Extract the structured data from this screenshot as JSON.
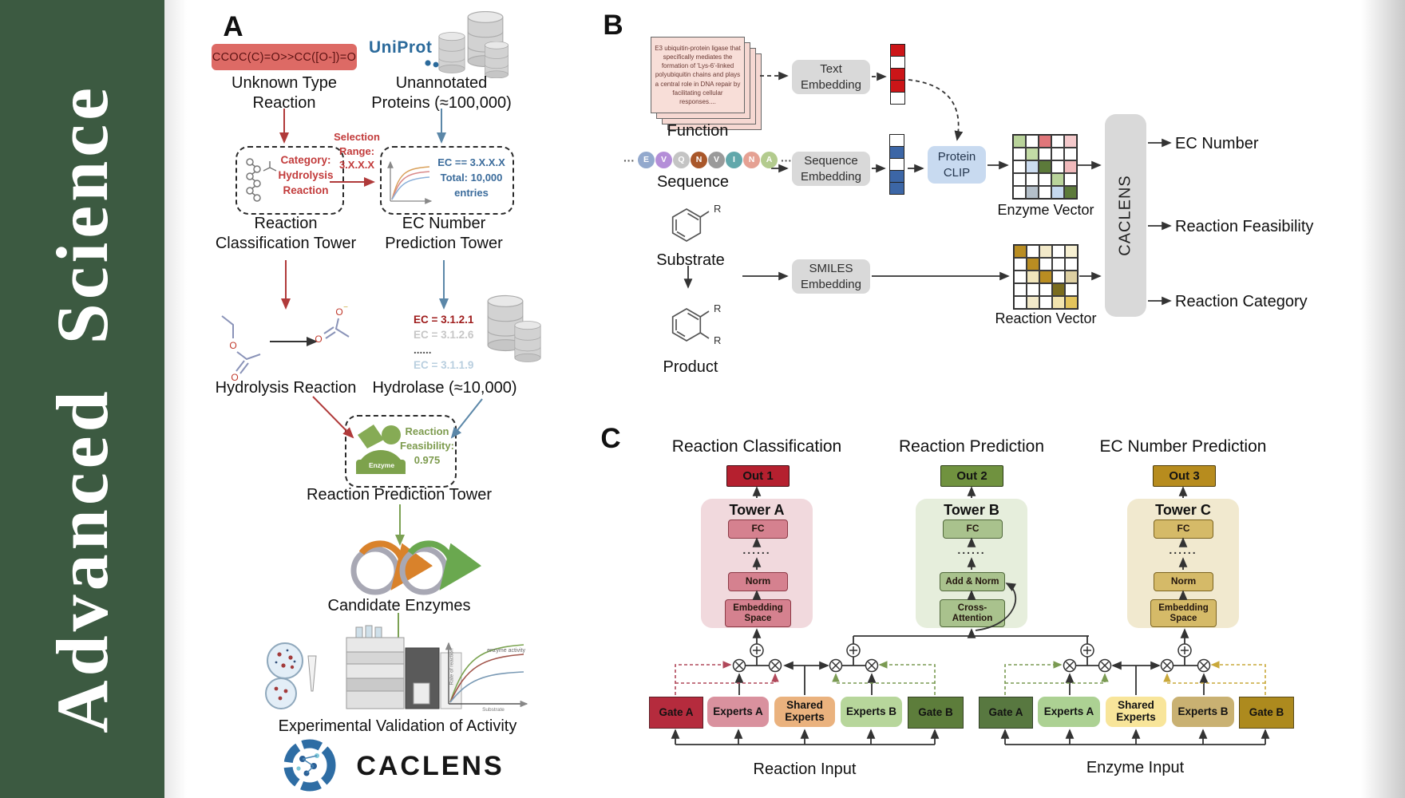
{
  "journal": {
    "title": "Advanced  Science",
    "band_color": "#3c5a41"
  },
  "colors": {
    "arrow_red": "#b03a3a",
    "arrow_blue": "#5b87a8",
    "arrow_green": "#7ba153",
    "dashed_red": "#b0485a",
    "dashed_green": "#7a9a52",
    "dashed_yellow": "#c9a83a",
    "smiles_box": "#dd6a65",
    "uniprot_blue": "#2b6a9b"
  },
  "panelA": {
    "label": "A",
    "smiles": "CCOC(C)=O>>CC([O-])=O",
    "unknown_reaction": "Unknown Type\nReaction",
    "uniprot": "UniProt",
    "unannotated": "Unannotated\nProteins (≈100,000)",
    "selection_range": "Selection\nRange:\n3.X.X.X",
    "category_box": "Category:\nHydrolysis\nReaction",
    "ec_box": "EC == 3.X.X.X\nTotal: 10,000\nentries",
    "classification_tower": "Reaction\nClassification Tower",
    "ec_tower": "EC Number\nPrediction Tower",
    "hydrolysis": "Hydrolysis Reaction",
    "hydrolase": "Hydrolase (≈10,000)",
    "ec_list": [
      {
        "text": "EC = 3.1.2.1",
        "color": "#9e1b1b"
      },
      {
        "text": "EC = 3.1.2.6",
        "color": "#c6c6c6"
      },
      {
        "text": "......",
        "color": "#555555"
      },
      {
        "text": "EC = 3.1.1.9",
        "color": "#b9cfdf"
      }
    ],
    "enzyme_icon_label": "Enzyme",
    "feasibility": "Reaction\nFeasibility:\n0.975",
    "prediction_tower": "Reaction Prediction Tower",
    "candidates": "Candidate Enzymes",
    "activity_plot": {
      "curve_label": "enzyme activity",
      "ylabel": "Rate of reaction",
      "xlabel": "Substrate"
    },
    "validation": "Experimental Validation of Activity",
    "logo_text": "CACLENS"
  },
  "panelB": {
    "label": "B",
    "function_card": "E3 ubiquitin-protein ligase that specifically mediates the formation of 'Lys-6'-linked polyubiquitin chains and plays a central role in DNA repair by facilitating cellular responses....",
    "function_label": "Function",
    "ellipsis": "···",
    "sequence_residues": [
      {
        "letter": "E",
        "color": "#93a9cd"
      },
      {
        "letter": "V",
        "color": "#b48ed8"
      },
      {
        "letter": "Q",
        "color": "#c4c4c4"
      },
      {
        "letter": "N",
        "color": "#a9572a"
      },
      {
        "letter": "V",
        "color": "#9a9a9a"
      },
      {
        "letter": "I",
        "color": "#62a8ab"
      },
      {
        "letter": "N",
        "color": "#e5a193"
      },
      {
        "letter": "A",
        "color": "#b3cb8e"
      }
    ],
    "sequence_label": "Sequence",
    "substrate_label": "Substrate",
    "product_label": "Product",
    "r_label": "R",
    "text_embedding": "Text\nEmbedding",
    "sequence_embedding": "Sequence\nEmbedding",
    "smiles_embedding": "SMILES\nEmbedding",
    "protein_clip": "Protein\nCLIP",
    "text_vector": [
      "#cc1518",
      "#ffffff",
      "#cc1518",
      "#cc1518",
      "#ffffff"
    ],
    "seq_vector": [
      "#ffffff",
      "#3c66a6",
      "#ffffff",
      "#3c66a6",
      "#3c66a6"
    ],
    "enzyme_vector": [
      [
        "#b9d39a",
        "#ffffff",
        "#e0767a",
        "#ffffff",
        "#f4c9cb"
      ],
      [
        "#ffffff",
        "#c3dba6",
        "#ffffff",
        "#ffffff",
        "#ffffff"
      ],
      [
        "#ffffff",
        "#ccdcf0",
        "#5c7a3a",
        "#ffffff",
        "#f0b9bb"
      ],
      [
        "#ffffff",
        "#ffffff",
        "#ffffff",
        "#b9d39a",
        "#ffffff"
      ],
      [
        "#ffffff",
        "#b4bfc9",
        "#ffffff",
        "#c5d8ee",
        "#5c7a3a"
      ]
    ],
    "reaction_vector": [
      [
        "#b98d22",
        "#ffffff",
        "#f2e9c9",
        "#ffffff",
        "#f7f0d2"
      ],
      [
        "#ffffff",
        "#b98d22",
        "#ffffff",
        "#ffffff",
        "#ffffff"
      ],
      [
        "#ffffff",
        "#f0e5bb",
        "#b98d22",
        "#ffffff",
        "#ded0a2"
      ],
      [
        "#ffffff",
        "#ffffff",
        "#ffffff",
        "#7a6c1e",
        "#ffffff"
      ],
      [
        "#ffffff",
        "#f2e9c9",
        "#ffffff",
        "#f2e4ae",
        "#e3c45c"
      ]
    ],
    "enzyme_vector_label": "Enzyme Vector",
    "reaction_vector_label": "Reaction Vector",
    "caclens": "CACLENS",
    "outputs": [
      "EC Number",
      "Reaction Feasibility",
      "Reaction Category"
    ]
  },
  "panelC": {
    "label": "C",
    "sections": [
      "Reaction Classification",
      "Reaction Prediction",
      "EC Number Prediction"
    ],
    "outs": [
      "Out 1",
      "Out 2",
      "Out 3"
    ],
    "towers": [
      {
        "name": "Tower A",
        "fc": "FC",
        "dots": "......",
        "mid": "Norm",
        "bottom": "Embedding\nSpace"
      },
      {
        "name": "Tower B",
        "fc": "FC",
        "dots": "......",
        "mid": "Add & Norm",
        "bottom": "Cross-\nAttention"
      },
      {
        "name": "Tower C",
        "fc": "FC",
        "dots": "......",
        "mid": "Norm",
        "bottom": "Embedding\nSpace"
      }
    ],
    "moe_left": {
      "gate_a": "Gate A",
      "experts_a": "Experts A",
      "shared": "Shared\nExperts",
      "experts_b": "Experts B",
      "gate_b": "Gate B",
      "input": "Reaction Input"
    },
    "moe_right": {
      "gate_a": "Gate A",
      "experts_a": "Experts A",
      "shared": "Shared\nExperts",
      "experts_b": "Experts B",
      "gate_b": "Gate B",
      "input": "Enzyme Input"
    }
  }
}
